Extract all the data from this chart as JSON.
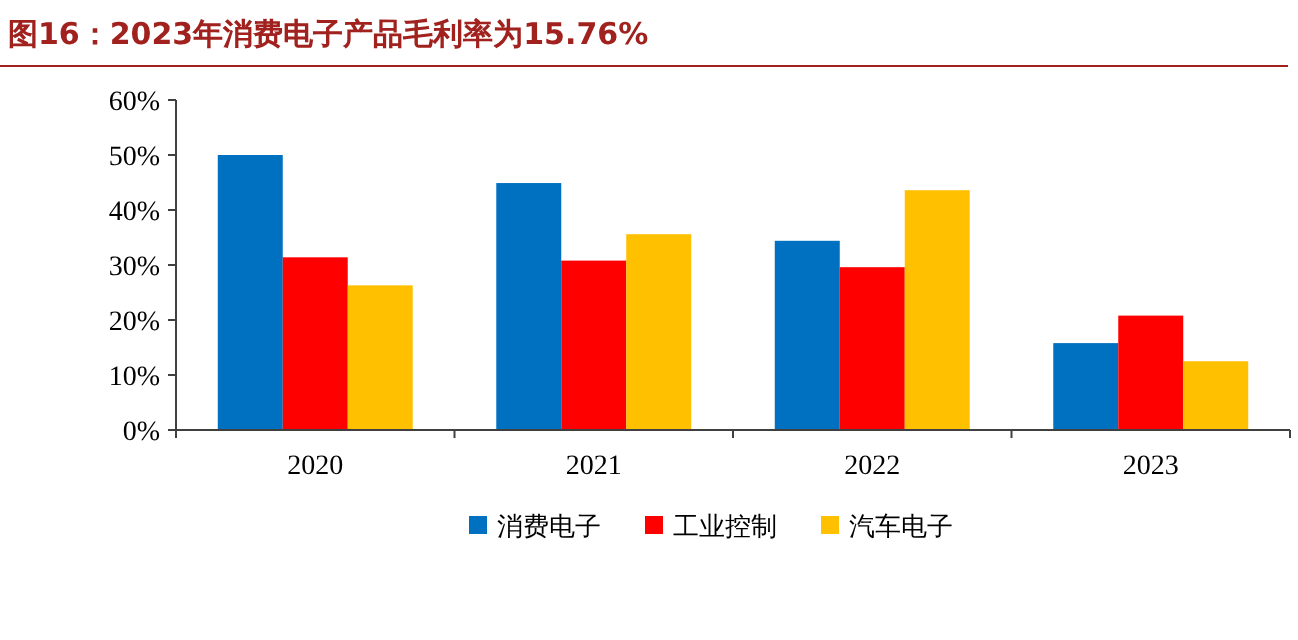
{
  "chart_data": {
    "type": "bar",
    "title": "图16：2023年消费电子产品毛利率为15.76%",
    "categories": [
      "2020",
      "2021",
      "2022",
      "2023"
    ],
    "series": [
      {
        "name": "消费电子",
        "color": "#0070c0",
        "values": [
          50.0,
          44.9,
          34.4,
          15.8
        ]
      },
      {
        "name": "工业控制",
        "color": "#ff0000",
        "values": [
          31.4,
          30.8,
          29.6,
          20.8
        ]
      },
      {
        "name": "汽车电子",
        "color": "#ffc000",
        "values": [
          26.3,
          35.6,
          43.6,
          12.5
        ]
      }
    ],
    "ylim": [
      0,
      60
    ],
    "yticks": [
      {
        "value": 0,
        "label": "0%"
      },
      {
        "value": 10,
        "label": "10%"
      },
      {
        "value": 20,
        "label": "20%"
      },
      {
        "value": 30,
        "label": "30%"
      },
      {
        "value": 40,
        "label": "40%"
      },
      {
        "value": 50,
        "label": "50%"
      },
      {
        "value": 60,
        "label": "60%"
      }
    ],
    "grid": false,
    "legend": "bottom"
  }
}
